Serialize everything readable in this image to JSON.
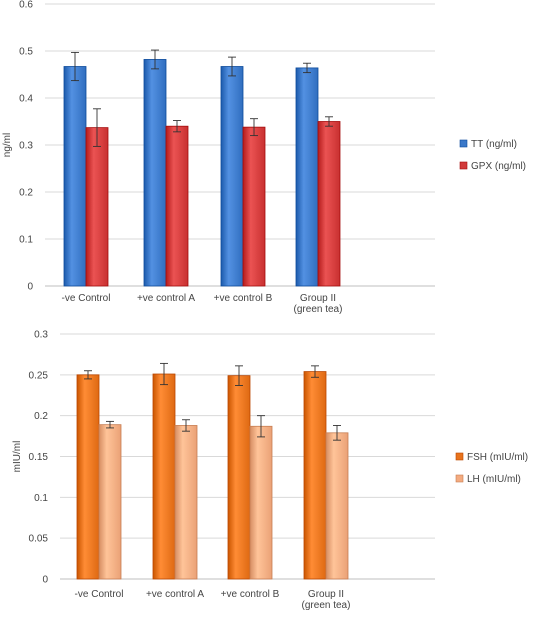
{
  "chart_data": [
    {
      "type": "bar",
      "ylabel": "ng/ml",
      "ylim": [
        0,
        0.6
      ],
      "yticks": [
        0,
        0.1,
        0.2,
        0.3,
        0.4,
        0.5,
        0.6
      ],
      "grid": true,
      "legend_position": "right",
      "categories": [
        [
          "-ve Control"
        ],
        [
          "+ve control A"
        ],
        [
          "+ve control B"
        ],
        [
          "Group II",
          "(green tea)"
        ]
      ],
      "series": [
        {
          "name": "TT (ng/ml)",
          "color": "#3a78c9",
          "values": [
            0.467,
            0.482,
            0.467,
            0.464
          ],
          "errors": [
            0.03,
            0.02,
            0.02,
            0.01
          ]
        },
        {
          "name": "GPX (ng/ml)",
          "color": "#d23a3a",
          "values": [
            0.337,
            0.34,
            0.338,
            0.35
          ],
          "errors": [
            0.04,
            0.012,
            0.018,
            0.01
          ]
        }
      ]
    },
    {
      "type": "bar",
      "ylabel": "mIU/ml",
      "ylim": [
        0,
        0.3
      ],
      "yticks": [
        0,
        0.05,
        0.1,
        0.15,
        0.2,
        0.25,
        0.3
      ],
      "grid": true,
      "legend_position": "right",
      "categories": [
        [
          "-ve Control"
        ],
        [
          "+ve control A"
        ],
        [
          "+ve control B"
        ],
        [
          "Group II",
          "(green tea)"
        ]
      ],
      "series": [
        {
          "name": "FSH (mIU/ml)",
          "color": "#e8731c",
          "values": [
            0.25,
            0.251,
            0.249,
            0.254
          ],
          "errors": [
            0.005,
            0.013,
            0.012,
            0.007
          ]
        },
        {
          "name": "LH (mIU/ml)",
          "color": "#f4ab80",
          "values": [
            0.189,
            0.188,
            0.187,
            0.179
          ],
          "errors": [
            0.004,
            0.007,
            0.013,
            0.009
          ]
        }
      ]
    }
  ]
}
